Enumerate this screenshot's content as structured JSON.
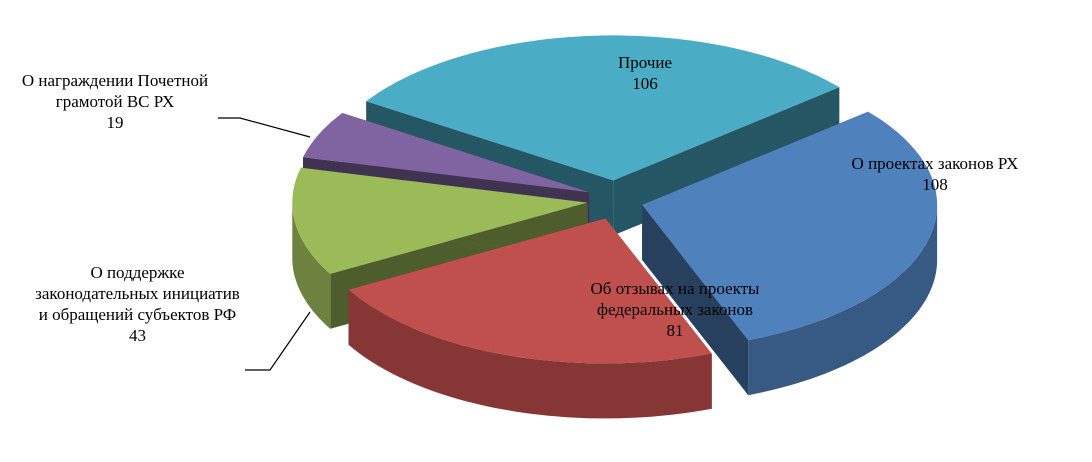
{
  "chart_data": {
    "type": "pie3d",
    "categories": [
      "О проектах законов РХ",
      "Об отзывах на проекты федеральных законов",
      "О поддержке законодательных инициатив и обращений субъектов РФ",
      "О награждении Почетной грамотой ВС РХ",
      "Прочие"
    ],
    "values": [
      108,
      81,
      43,
      19,
      106
    ],
    "colors": [
      "#4f81bd",
      "#c0504d",
      "#9bbb59",
      "#8064a2",
      "#4bacc6"
    ]
  }
}
